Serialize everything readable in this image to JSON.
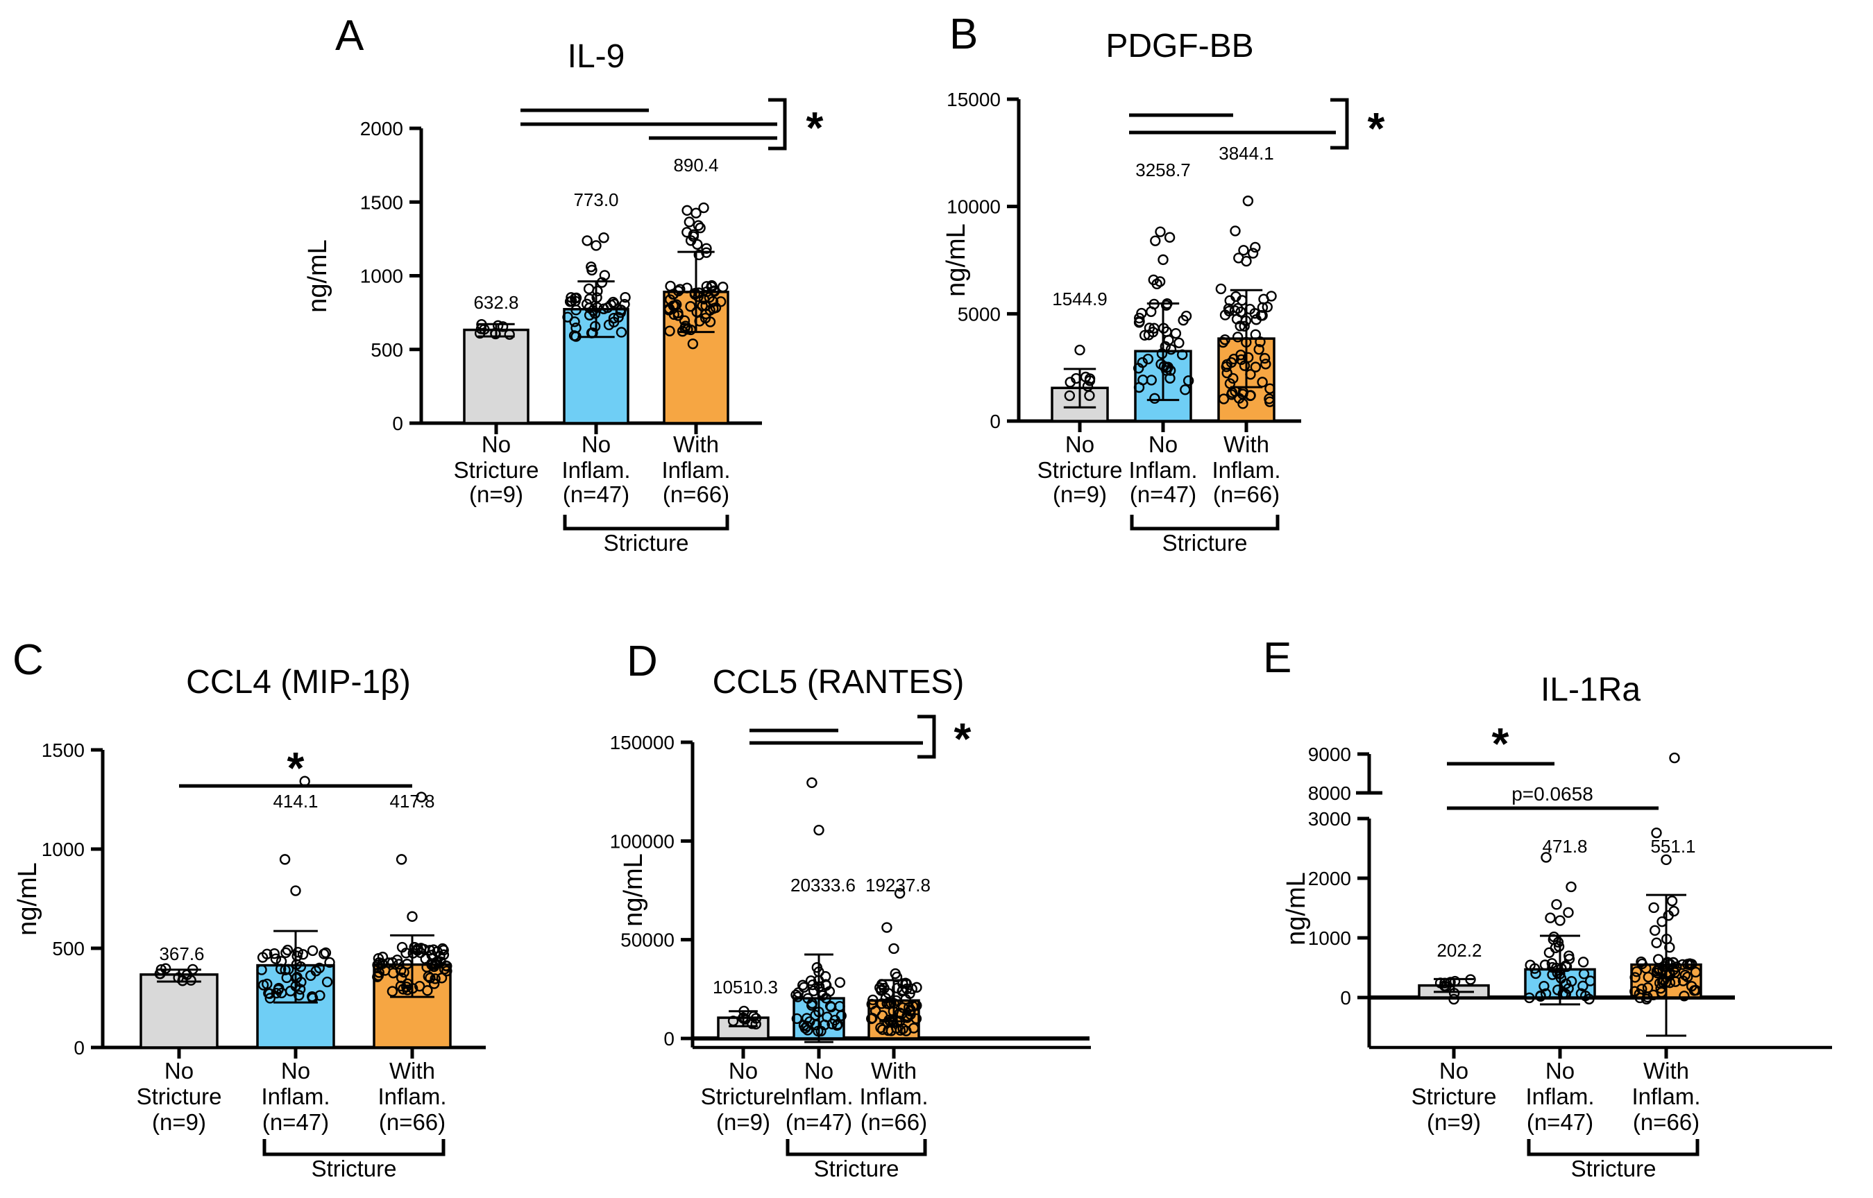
{
  "figure": {
    "background": "#ffffff",
    "units": "ng/mL"
  },
  "shared": {
    "ylabel": "ng/mL",
    "categories": [
      {
        "lines": [
          "No",
          "Stricture",
          "(n=9)"
        ]
      },
      {
        "lines": [
          "No",
          "Inflam.",
          "(n=47)"
        ]
      },
      {
        "lines": [
          "With",
          "Inflam.",
          "(n=66)"
        ]
      }
    ],
    "group_bracket_label": "Stricture",
    "colors": {
      "no_stricture": "#D9D9D9",
      "no_inflam": "#6FCEF5",
      "with_inflam": "#F6A643",
      "outline": "#000000"
    }
  },
  "chart_data": [
    {
      "type": "bar",
      "panel_label": "A",
      "title": "IL-9",
      "ylabel": "ng/mL",
      "ylim": [
        0,
        2000
      ],
      "yticks": [
        0,
        500,
        1000,
        1500,
        2000
      ],
      "categories": [
        "No Stricture (n=9)",
        "No Inflam. (n=47)",
        "With Inflam. (n=66)"
      ],
      "groups": [
        {
          "name": "No Stricture",
          "n": 9,
          "mean": 632.8,
          "value_label": "632.8",
          "color": "#D9D9D9",
          "error": [
            588,
            672
          ],
          "scatter": {
            "cluster": [
              578,
              692
            ],
            "skew": 1.0
          }
        },
        {
          "name": "No Inflam.",
          "n": 47,
          "mean": 773.0,
          "value_label": "773.0",
          "color": "#6FCEF5",
          "error": [
            585,
            962
          ],
          "scatter": {
            "cluster": [
              560,
              855
            ],
            "skew": 1.5,
            "column": [
              868,
              1085
            ],
            "column_n": 6,
            "outliers": [
              1205,
              1238,
              1258
            ]
          }
        },
        {
          "name": "With Inflam.",
          "n": 66,
          "mean": 890.4,
          "value_label": "890.4",
          "color": "#F6A643",
          "error": [
            618,
            1162
          ],
          "scatter": {
            "cluster": [
              598,
              935
            ],
            "skew": 1.5,
            "column": [
              1128,
              1388
            ],
            "column_n": 11,
            "outliers": [
              1425,
              1443,
              1461,
              538
            ]
          }
        }
      ],
      "significance": {
        "bracket": true,
        "comparisons": [
          [
            0,
            1
          ],
          [
            0,
            2
          ],
          [
            1,
            2
          ]
        ],
        "labels": [
          "*"
        ]
      }
    },
    {
      "type": "bar",
      "panel_label": "B",
      "title": "PDGF-BB",
      "ylabel": "ng/mL",
      "ylim": [
        0,
        15000
      ],
      "yticks": [
        0,
        5000,
        10000,
        15000
      ],
      "categories": [
        "No Stricture (n=9)",
        "No Inflam. (n=47)",
        "With Inflam. (n=66)"
      ],
      "groups": [
        {
          "name": "No Stricture",
          "n": 9,
          "mean": 1544.9,
          "value_label": "1544.9",
          "color": "#D9D9D9",
          "error": [
            640,
            2430
          ],
          "scatter": {
            "cluster": [
              620,
              2080
            ],
            "skew": 1.1,
            "outliers": [
              3310
            ]
          }
        },
        {
          "name": "No Inflam.",
          "n": 47,
          "mean": 3258.7,
          "value_label": "3258.7",
          "color": "#6FCEF5",
          "error": [
            980,
            5480
          ],
          "scatter": {
            "cluster": [
              900,
              5480
            ],
            "skew": 1.1,
            "column": [
              6320,
              6650
            ],
            "column_n": 3,
            "outliers": [
              7520,
              8400,
              8560,
              8820
            ]
          }
        },
        {
          "name": "With Inflam.",
          "n": 66,
          "mean": 3844.1,
          "value_label": "3844.1",
          "color": "#F6A643",
          "error": [
            1580,
            6100
          ],
          "scatter": {
            "cluster": [
              700,
              6280
            ],
            "skew": 1.1,
            "outliers": [
              7450,
              7600,
              7820,
              7960,
              8100,
              8860,
              10260
            ]
          }
        }
      ],
      "significance": {
        "bracket": true,
        "comparisons": [
          [
            0,
            1
          ],
          [
            0,
            2
          ]
        ],
        "labels": [
          "*"
        ]
      }
    },
    {
      "type": "bar",
      "panel_label": "C",
      "title": "CCL4 (MIP-1β)",
      "ylabel": "ng/mL",
      "ylim": [
        0,
        1500
      ],
      "yticks": [
        0,
        500,
        1000,
        1500
      ],
      "categories": [
        "No Stricture (n=9)",
        "No Inflam. (n=47)",
        "With Inflam. (n=66)"
      ],
      "groups": [
        {
          "name": "No Stricture",
          "n": 9,
          "mean": 367.6,
          "value_label": "367.6",
          "color": "#D9D9D9",
          "error": [
            332,
            392
          ],
          "scatter": {
            "cluster": [
              330,
              402
            ],
            "skew": 1.0
          }
        },
        {
          "name": "No Inflam.",
          "n": 47,
          "mean": 414.1,
          "value_label": "414.1",
          "color": "#6FCEF5",
          "error": [
            227,
            587
          ],
          "scatter": {
            "cluster": [
              248,
              492
            ],
            "skew": 1.35,
            "outliers": [
              790,
              948,
              1342
            ]
          }
        },
        {
          "name": "With Inflam.",
          "n": 66,
          "mean": 417.8,
          "value_label": "417.8",
          "color": "#F6A643",
          "error": [
            255,
            565
          ],
          "scatter": {
            "cluster": [
              282,
              508
            ],
            "skew": 1.35,
            "outliers": [
              660,
              948,
              1262
            ]
          }
        }
      ],
      "significance": {
        "bracket": false,
        "comparisons": [
          [
            0,
            2
          ]
        ],
        "labels": [
          "*"
        ]
      }
    },
    {
      "type": "bar",
      "panel_label": "D",
      "title": "CCL5 (RANTES)",
      "ylabel": "ng/mL",
      "ylim": [
        0,
        150000
      ],
      "yticks": [
        0,
        50000,
        100000,
        150000
      ],
      "categories": [
        "No Stricture (n=9)",
        "No Inflam. (n=47)",
        "With Inflam. (n=66)"
      ],
      "groups": [
        {
          "name": "No Stricture",
          "n": 9,
          "mean": 10510.3,
          "value_label": "10510.3",
          "color": "#D9D9D9",
          "error": [
            6200,
            13800
          ],
          "scatter": {
            "cluster": [
              5600,
              14400
            ],
            "skew": 1.0
          }
        },
        {
          "name": "No Inflam.",
          "n": 47,
          "mean": 20333.6,
          "value_label": "20333.6",
          "color": "#6FCEF5",
          "error": [
            -1800,
            42500
          ],
          "scatter": {
            "cluster": [
              2600,
              29400
            ],
            "skew": 1.0,
            "column": [
              30500,
              37400
            ],
            "column_n": 3,
            "outliers": [
              105500,
              129500
            ]
          }
        },
        {
          "name": "With Inflam.",
          "n": 66,
          "mean": 19237.8,
          "value_label": "19237.8",
          "color": "#F6A643",
          "error": [
            8700,
            29500
          ],
          "scatter": {
            "cluster": [
              3600,
              28300
            ],
            "skew": 1.0,
            "column": [
              30200,
              33500
            ],
            "column_n": 2,
            "outliers": [
              45500,
              56200,
              73500
            ]
          }
        }
      ],
      "significance": {
        "bracket": true,
        "comparisons": [
          [
            0,
            1
          ],
          [
            0,
            2
          ]
        ],
        "labels": [
          "*"
        ]
      }
    },
    {
      "type": "bar",
      "panel_label": "E",
      "title": "IL-1Ra",
      "ylabel": "ng/mL",
      "ylim": [
        0,
        3000
      ],
      "ylim_upper": [
        8000,
        9000
      ],
      "axis_break": {
        "between": [
          3000,
          8000
        ]
      },
      "yticks": [
        0,
        1000,
        2000,
        3000
      ],
      "yticks_upper": [
        8000,
        9000
      ],
      "categories": [
        "No Stricture (n=9)",
        "No Inflam. (n=47)",
        "With Inflam. (n=66)"
      ],
      "groups": [
        {
          "name": "No Stricture",
          "n": 9,
          "mean": 202.2,
          "value_label": "202.2",
          "color": "#D9D9D9",
          "error": [
            95,
            310
          ],
          "scatter": {
            "cluster": [
              25,
              330
            ],
            "skew": 1.0,
            "outliers": [
              -28
            ]
          }
        },
        {
          "name": "No Inflam.",
          "n": 47,
          "mean": 471.8,
          "value_label": "471.8",
          "color": "#6FCEF5",
          "error": [
            -115,
            1035
          ],
          "scatter": {
            "cluster": [
              -30,
              600
            ],
            "skew": 1.0,
            "column": [
              625,
              1060
            ],
            "column_n": 8,
            "outliers": [
              1290,
              1335,
              1425,
              1560,
              1855,
              2350
            ]
          }
        },
        {
          "name": "With Inflam.",
          "n": 66,
          "mean": 551.1,
          "value_label": "551.1",
          "color": "#F6A643",
          "error": [
            -640,
            1720
          ],
          "scatter": {
            "cluster": [
              -30,
              600
            ],
            "skew": 1.0,
            "column": [
              640,
              1700
            ],
            "column_n": 10,
            "outliers": [
              2310,
              2760,
              8900
            ]
          }
        }
      ],
      "significance": {
        "bracket": false,
        "comparisons": [
          [
            0,
            1
          ],
          [
            0,
            2
          ]
        ],
        "labels": [
          "*",
          "p=0.0658"
        ]
      }
    }
  ]
}
